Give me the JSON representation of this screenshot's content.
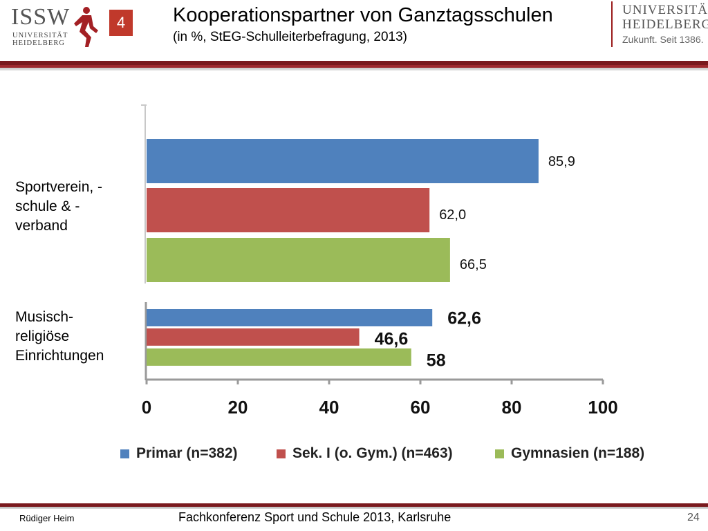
{
  "header": {
    "logo_left": {
      "name": "ISSW",
      "sub1": "UNIVERSITÄT",
      "sub2": "HEIDELBERG"
    },
    "slide_badge": "4",
    "title": "Kooperationspartner von Ganztagsschulen",
    "subtitle": "(in %, StEG-Schulleiterbefragung, 2013)",
    "logo_right": {
      "line1": "UNIVERSITÄT",
      "line2": "HEIDELBERG",
      "line3": "Zukunft. Seit 1386."
    }
  },
  "colors": {
    "primar": "#4f81bd",
    "sek1": "#c0504d",
    "gymnasien": "#9bbb59",
    "accent": "#8b1a1e"
  },
  "chart_data": {
    "type": "bar",
    "orientation": "horizontal",
    "categories": [
      "Sportverein, -\nschule & -\nverband",
      "Musisch-\nreligiöse\nEinrichtungen"
    ],
    "category_lines": [
      [
        "Sportverein, -",
        "schule & -",
        "verband"
      ],
      [
        "Musisch-",
        "religiöse",
        "Einrichtungen"
      ]
    ],
    "series": [
      {
        "name": "Primar (n=382)",
        "values": [
          85.9,
          62.6
        ],
        "labels": [
          "85,9",
          "62,6"
        ]
      },
      {
        "name": "Sek. I (o. Gym.) (n=463)",
        "values": [
          62.0,
          46.6
        ],
        "labels": [
          "62,0",
          "46,6"
        ]
      },
      {
        "name": "Gymnasien (n=188)",
        "values": [
          66.5,
          58
        ],
        "labels": [
          "66,5",
          "58"
        ]
      }
    ],
    "xlim": [
      0,
      100
    ],
    "xticks": [
      "0",
      "20",
      "40",
      "60",
      "80",
      "100"
    ],
    "legend_position": "bottom"
  },
  "footer": {
    "author": "Rüdiger Heim",
    "event": "Fachkonferenz Sport und Schule 2013, Karlsruhe",
    "page": "24"
  }
}
